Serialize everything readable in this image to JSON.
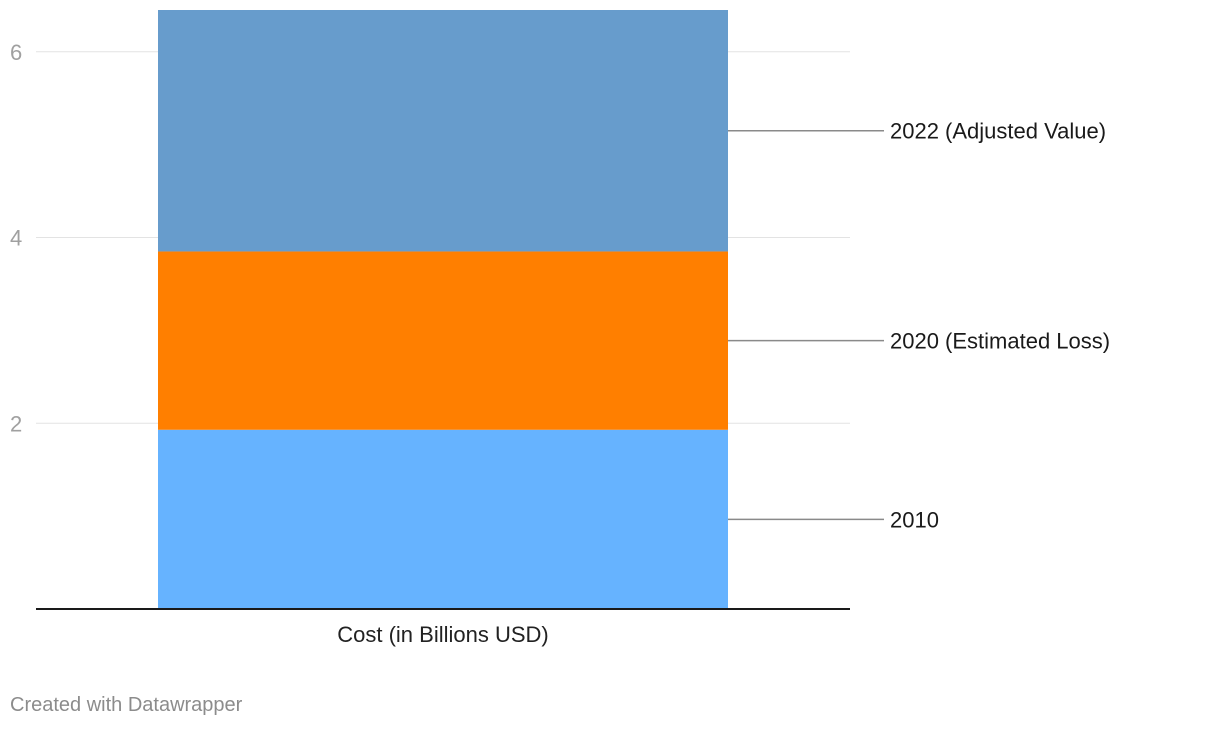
{
  "chart_data": {
    "type": "bar",
    "stacked": true,
    "categories": [
      "Cost (in Billions USD)"
    ],
    "series": [
      {
        "name": "2010",
        "values": [
          1.93
        ],
        "color": "#66b3ff"
      },
      {
        "name": "2020 (Estimated Loss)",
        "values": [
          1.92
        ],
        "color": "#ff7f00"
      },
      {
        "name": "2022 (Adjusted Value)",
        "values": [
          2.6
        ],
        "color": "#679ccc"
      }
    ],
    "yticks": [
      2,
      4,
      6
    ],
    "ylim": [
      0,
      6.45
    ],
    "grid": true,
    "legend": "right, inline labels"
  },
  "footer": {
    "credit": "Created with Datawrapper"
  }
}
